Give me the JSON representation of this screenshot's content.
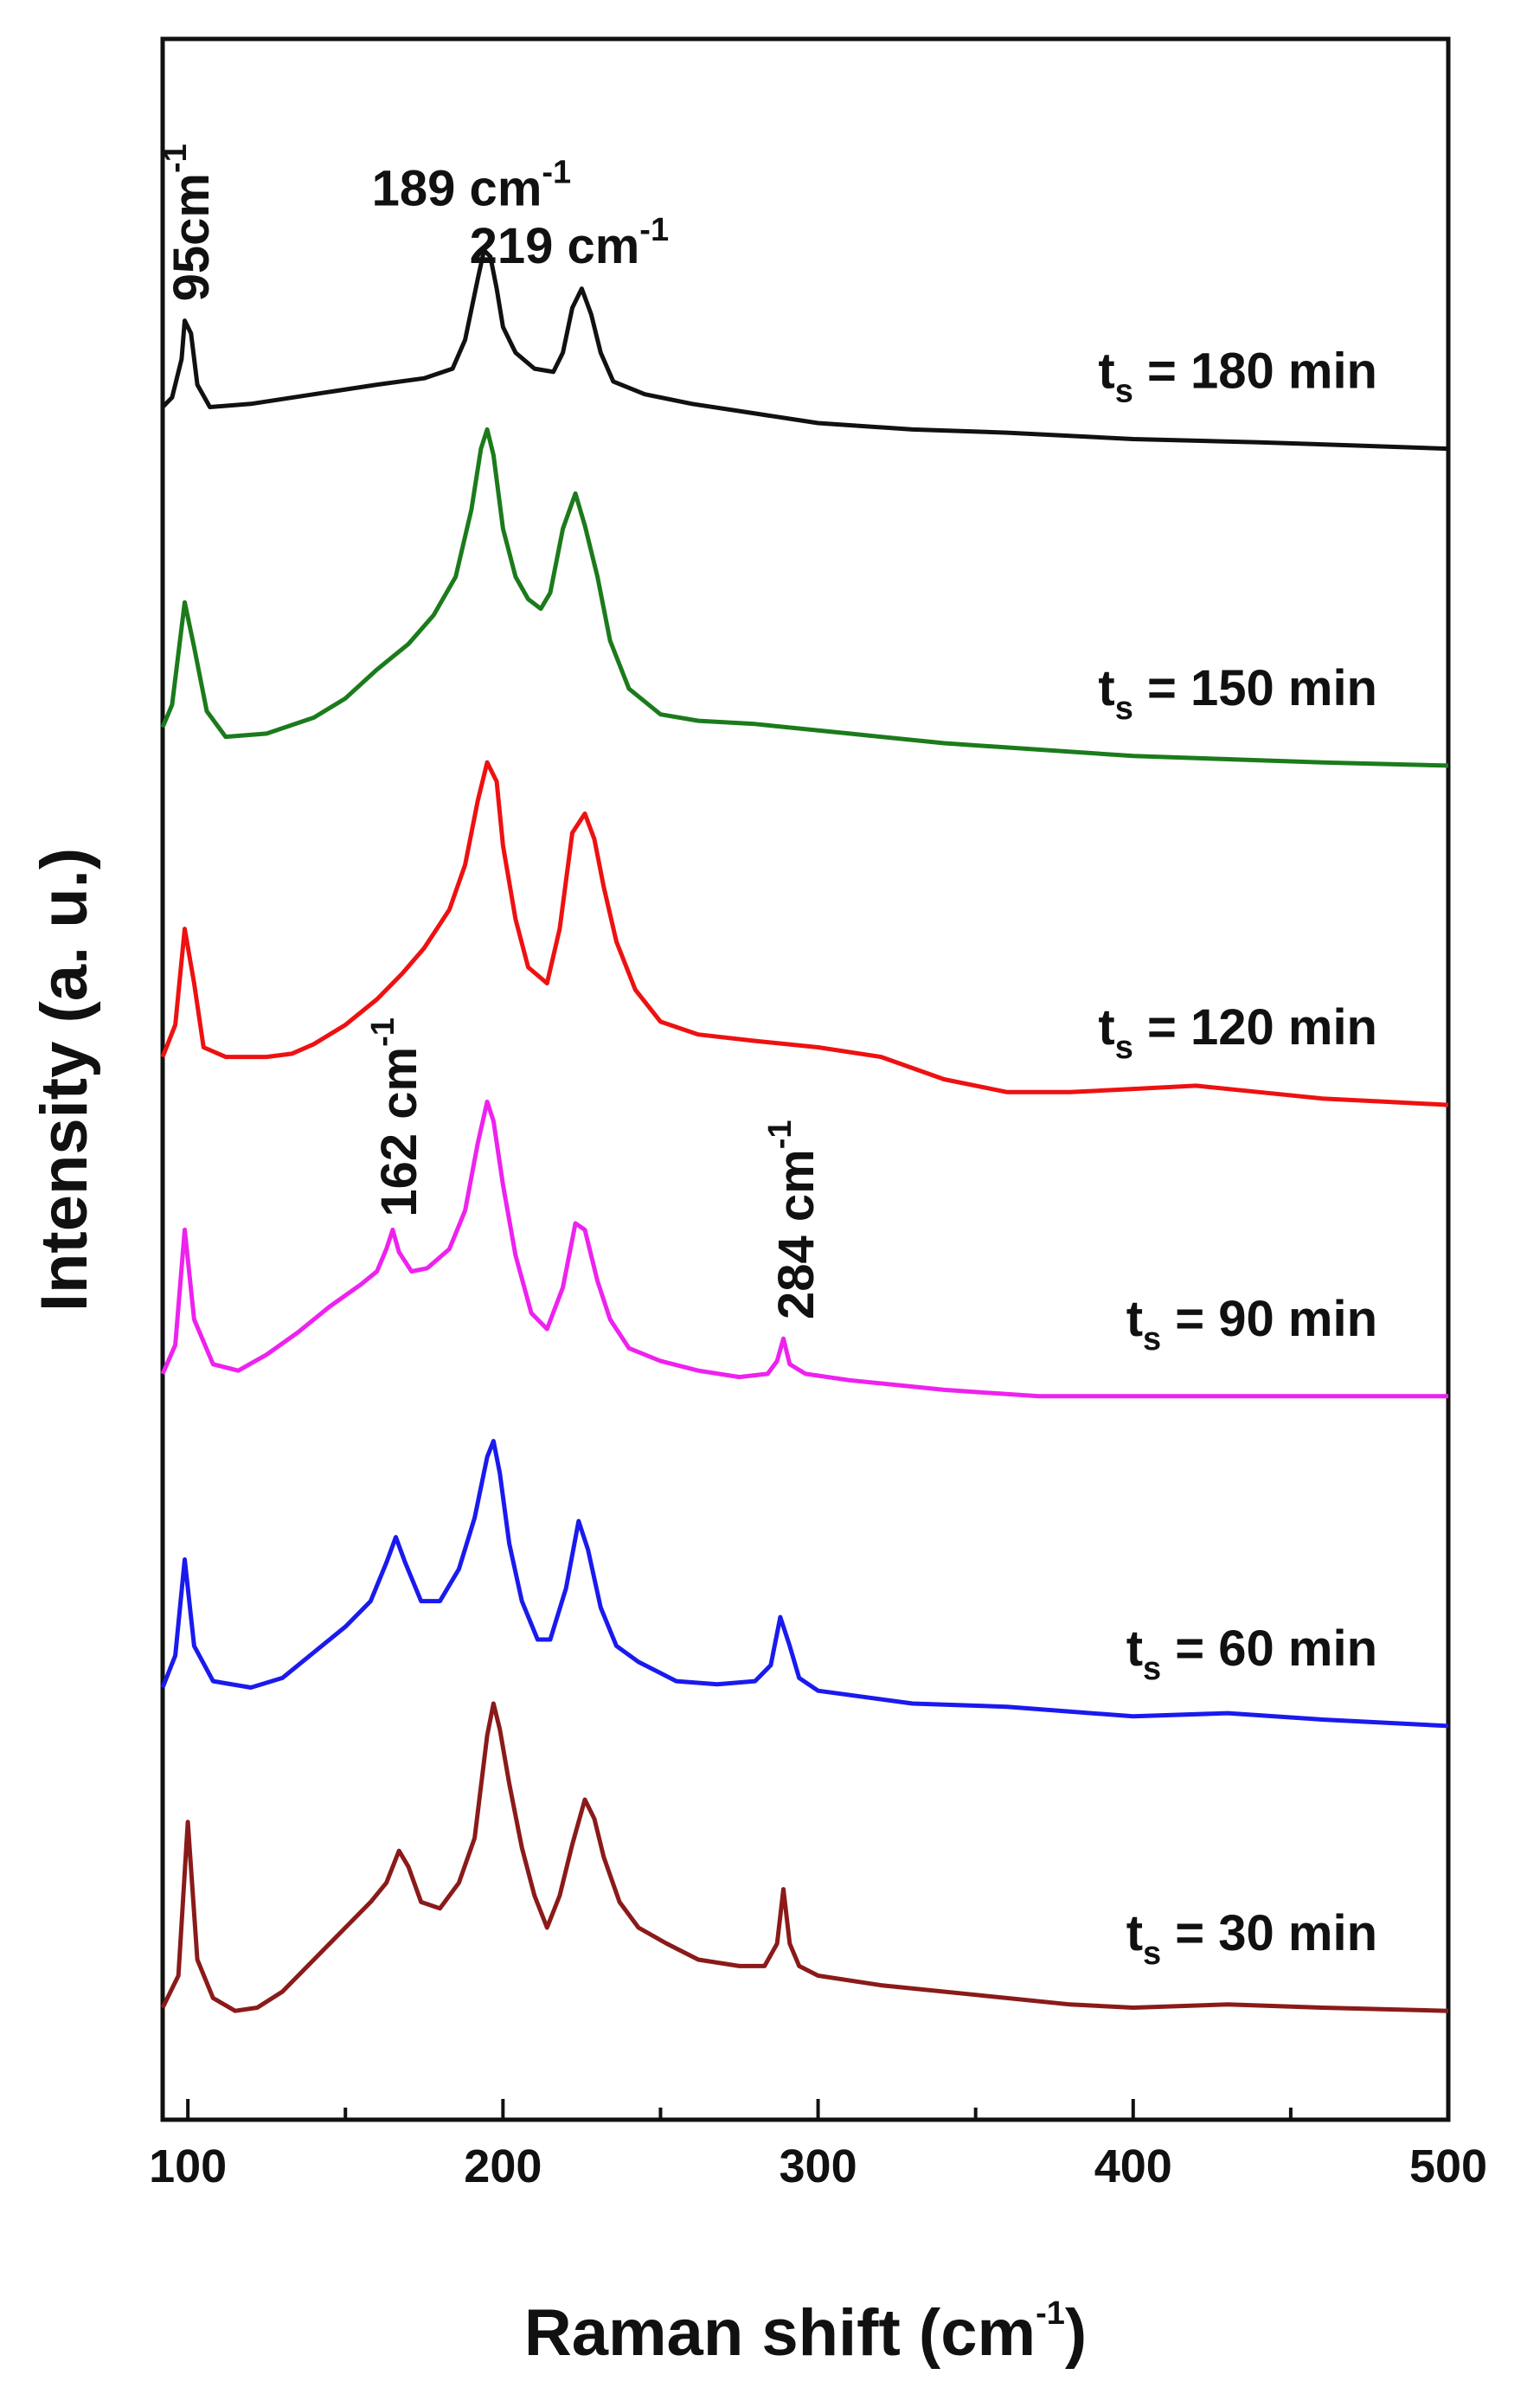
{
  "chart_data": {
    "type": "line",
    "title": "",
    "xlabel": "Raman shift (cm",
    "xlabel_sup": "-1",
    "xlabel_close": ")",
    "ylabel": "Intensity (a. u.)",
    "xlim": [
      92,
      500
    ],
    "ylim": [
      0,
      6.5
    ],
    "xticks": [
      100,
      200,
      300,
      400,
      500
    ],
    "xtick_labels": [
      "100",
      "200",
      "300",
      "400",
      "500"
    ],
    "grid": false,
    "series": [
      {
        "name": "t_s = 30 min",
        "label_main": "t",
        "label_sub": "s",
        "label_rest": " = 30 min",
        "color": "#8b1a1a",
        "points": [
          [
            92,
            0.35
          ],
          [
            97,
            0.45
          ],
          [
            100,
            0.93
          ],
          [
            103,
            0.5
          ],
          [
            108,
            0.38
          ],
          [
            115,
            0.34
          ],
          [
            122,
            0.35
          ],
          [
            130,
            0.4
          ],
          [
            140,
            0.5
          ],
          [
            150,
            0.6
          ],
          [
            158,
            0.68
          ],
          [
            163,
            0.74
          ],
          [
            167,
            0.84
          ],
          [
            170,
            0.79
          ],
          [
            174,
            0.68
          ],
          [
            180,
            0.66
          ],
          [
            186,
            0.74
          ],
          [
            191,
            0.88
          ],
          [
            195,
            1.2
          ],
          [
            197,
            1.3
          ],
          [
            199,
            1.22
          ],
          [
            202,
            1.05
          ],
          [
            206,
            0.85
          ],
          [
            210,
            0.7
          ],
          [
            214,
            0.6
          ],
          [
            218,
            0.7
          ],
          [
            222,
            0.86
          ],
          [
            226,
            1.0
          ],
          [
            229,
            0.94
          ],
          [
            232,
            0.82
          ],
          [
            237,
            0.68
          ],
          [
            243,
            0.6
          ],
          [
            252,
            0.55
          ],
          [
            262,
            0.5
          ],
          [
            275,
            0.48
          ],
          [
            283,
            0.48
          ],
          [
            287,
            0.55
          ],
          [
            289,
            0.72
          ],
          [
            291,
            0.55
          ],
          [
            294,
            0.48
          ],
          [
            300,
            0.45
          ],
          [
            320,
            0.42
          ],
          [
            350,
            0.39
          ],
          [
            380,
            0.36
          ],
          [
            400,
            0.35
          ],
          [
            430,
            0.36
          ],
          [
            460,
            0.35
          ],
          [
            500,
            0.34
          ]
        ]
      },
      {
        "name": "t_s = 60 min",
        "label_main": "t",
        "label_sub": "s",
        "label_rest": " = 60 min",
        "color": "#1a1aee",
        "points": [
          [
            92,
            1.35
          ],
          [
            96,
            1.45
          ],
          [
            99,
            1.75
          ],
          [
            102,
            1.48
          ],
          [
            108,
            1.37
          ],
          [
            120,
            1.35
          ],
          [
            130,
            1.38
          ],
          [
            140,
            1.46
          ],
          [
            150,
            1.54
          ],
          [
            158,
            1.62
          ],
          [
            163,
            1.74
          ],
          [
            166,
            1.82
          ],
          [
            169,
            1.74
          ],
          [
            174,
            1.62
          ],
          [
            180,
            1.62
          ],
          [
            186,
            1.72
          ],
          [
            191,
            1.88
          ],
          [
            195,
            2.07
          ],
          [
            197,
            2.12
          ],
          [
            199,
            2.02
          ],
          [
            202,
            1.8
          ],
          [
            206,
            1.62
          ],
          [
            211,
            1.5
          ],
          [
            215,
            1.5
          ],
          [
            220,
            1.66
          ],
          [
            224,
            1.87
          ],
          [
            227,
            1.78
          ],
          [
            231,
            1.6
          ],
          [
            236,
            1.48
          ],
          [
            243,
            1.43
          ],
          [
            255,
            1.37
          ],
          [
            268,
            1.36
          ],
          [
            280,
            1.37
          ],
          [
            285,
            1.42
          ],
          [
            288,
            1.57
          ],
          [
            291,
            1.48
          ],
          [
            294,
            1.38
          ],
          [
            300,
            1.34
          ],
          [
            330,
            1.3
          ],
          [
            360,
            1.29
          ],
          [
            400,
            1.26
          ],
          [
            430,
            1.27
          ],
          [
            460,
            1.25
          ],
          [
            500,
            1.23
          ]
        ]
      },
      {
        "name": "t_s = 90 min",
        "label_main": "t",
        "label_sub": "s",
        "label_rest": " = 90 min",
        "color": "#ee22ee",
        "points": [
          [
            92,
            2.33
          ],
          [
            96,
            2.42
          ],
          [
            99,
            2.78
          ],
          [
            102,
            2.5
          ],
          [
            108,
            2.36
          ],
          [
            116,
            2.34
          ],
          [
            125,
            2.39
          ],
          [
            135,
            2.46
          ],
          [
            145,
            2.54
          ],
          [
            155,
            2.61
          ],
          [
            160,
            2.65
          ],
          [
            163,
            2.72
          ],
          [
            165,
            2.78
          ],
          [
            167,
            2.71
          ],
          [
            171,
            2.65
          ],
          [
            176,
            2.66
          ],
          [
            183,
            2.72
          ],
          [
            188,
            2.84
          ],
          [
            192,
            3.05
          ],
          [
            195,
            3.18
          ],
          [
            197,
            3.12
          ],
          [
            200,
            2.92
          ],
          [
            204,
            2.7
          ],
          [
            209,
            2.52
          ],
          [
            214,
            2.47
          ],
          [
            219,
            2.6
          ],
          [
            223,
            2.8
          ],
          [
            226,
            2.78
          ],
          [
            230,
            2.62
          ],
          [
            234,
            2.5
          ],
          [
            240,
            2.41
          ],
          [
            250,
            2.37
          ],
          [
            262,
            2.34
          ],
          [
            275,
            2.32
          ],
          [
            284,
            2.33
          ],
          [
            287,
            2.37
          ],
          [
            289,
            2.44
          ],
          [
            291,
            2.36
          ],
          [
            296,
            2.33
          ],
          [
            310,
            2.31
          ],
          [
            340,
            2.28
          ],
          [
            370,
            2.26
          ],
          [
            400,
            2.26
          ],
          [
            430,
            2.26
          ],
          [
            460,
            2.26
          ],
          [
            500,
            2.26
          ]
        ]
      },
      {
        "name": "t_s = 120 min",
        "label_main": "t",
        "label_sub": "s",
        "label_rest": " = 120 min",
        "color": "#ee1111",
        "points": [
          [
            92,
            3.32
          ],
          [
            96,
            3.42
          ],
          [
            99,
            3.72
          ],
          [
            102,
            3.55
          ],
          [
            105,
            3.35
          ],
          [
            112,
            3.32
          ],
          [
            125,
            3.32
          ],
          [
            133,
            3.33
          ],
          [
            140,
            3.36
          ],
          [
            150,
            3.42
          ],
          [
            160,
            3.5
          ],
          [
            168,
            3.58
          ],
          [
            175,
            3.66
          ],
          [
            183,
            3.78
          ],
          [
            188,
            3.92
          ],
          [
            192,
            4.12
          ],
          [
            195,
            4.24
          ],
          [
            198,
            4.18
          ],
          [
            200,
            3.98
          ],
          [
            204,
            3.75
          ],
          [
            208,
            3.6
          ],
          [
            214,
            3.55
          ],
          [
            218,
            3.72
          ],
          [
            222,
            4.02
          ],
          [
            226,
            4.08
          ],
          [
            229,
            4.0
          ],
          [
            232,
            3.85
          ],
          [
            236,
            3.68
          ],
          [
            242,
            3.53
          ],
          [
            250,
            3.43
          ],
          [
            262,
            3.39
          ],
          [
            280,
            3.37
          ],
          [
            300,
            3.35
          ],
          [
            320,
            3.32
          ],
          [
            340,
            3.25
          ],
          [
            360,
            3.21
          ],
          [
            380,
            3.21
          ],
          [
            400,
            3.22
          ],
          [
            420,
            3.23
          ],
          [
            440,
            3.21
          ],
          [
            460,
            3.19
          ],
          [
            480,
            3.18
          ],
          [
            500,
            3.17
          ]
        ]
      },
      {
        "name": "t_s = 150 min",
        "label_main": "t",
        "label_sub": "s",
        "label_rest": " = 150 min",
        "color": "#1b7b1b",
        "points": [
          [
            92,
            4.35
          ],
          [
            95,
            4.42
          ],
          [
            99,
            4.74
          ],
          [
            102,
            4.6
          ],
          [
            106,
            4.4
          ],
          [
            112,
            4.32
          ],
          [
            125,
            4.33
          ],
          [
            140,
            4.38
          ],
          [
            150,
            4.44
          ],
          [
            160,
            4.53
          ],
          [
            170,
            4.61
          ],
          [
            178,
            4.7
          ],
          [
            185,
            4.82
          ],
          [
            190,
            5.03
          ],
          [
            193,
            5.22
          ],
          [
            195,
            5.28
          ],
          [
            197,
            5.2
          ],
          [
            200,
            4.97
          ],
          [
            204,
            4.82
          ],
          [
            208,
            4.75
          ],
          [
            212,
            4.72
          ],
          [
            215,
            4.77
          ],
          [
            219,
            4.97
          ],
          [
            223,
            5.08
          ],
          [
            226,
            4.98
          ],
          [
            230,
            4.82
          ],
          [
            234,
            4.62
          ],
          [
            240,
            4.47
          ],
          [
            250,
            4.39
          ],
          [
            262,
            4.37
          ],
          [
            280,
            4.36
          ],
          [
            310,
            4.33
          ],
          [
            340,
            4.3
          ],
          [
            370,
            4.28
          ],
          [
            400,
            4.26
          ],
          [
            430,
            4.25
          ],
          [
            460,
            4.24
          ],
          [
            500,
            4.23
          ]
        ]
      },
      {
        "name": "t_s = 180 min",
        "label_main": "t",
        "label_sub": "s",
        "label_rest": " = 180 min",
        "color": "#111111",
        "points": [
          [
            92,
            5.35
          ],
          [
            95,
            5.38
          ],
          [
            98,
            5.5
          ],
          [
            99,
            5.62
          ],
          [
            101,
            5.58
          ],
          [
            103,
            5.42
          ],
          [
            107,
            5.35
          ],
          [
            120,
            5.36
          ],
          [
            140,
            5.39
          ],
          [
            160,
            5.42
          ],
          [
            175,
            5.44
          ],
          [
            184,
            5.47
          ],
          [
            188,
            5.56
          ],
          [
            192,
            5.75
          ],
          [
            194,
            5.84
          ],
          [
            196,
            5.82
          ],
          [
            198,
            5.72
          ],
          [
            200,
            5.6
          ],
          [
            204,
            5.52
          ],
          [
            210,
            5.47
          ],
          [
            216,
            5.46
          ],
          [
            219,
            5.52
          ],
          [
            222,
            5.66
          ],
          [
            225,
            5.72
          ],
          [
            228,
            5.64
          ],
          [
            231,
            5.52
          ],
          [
            235,
            5.43
          ],
          [
            245,
            5.39
          ],
          [
            260,
            5.36
          ],
          [
            280,
            5.33
          ],
          [
            300,
            5.3
          ],
          [
            330,
            5.28
          ],
          [
            360,
            5.27
          ],
          [
            400,
            5.25
          ],
          [
            440,
            5.24
          ],
          [
            470,
            5.23
          ],
          [
            500,
            5.22
          ]
        ]
      }
    ],
    "annotations": [
      {
        "text": "95cm",
        "sup": "-1",
        "x": 101,
        "y": 5.68,
        "rotate": -90
      },
      {
        "text": "189 cm",
        "sup": "-1",
        "x": 190,
        "y": 5.98,
        "rotate": 0
      },
      {
        "text": "219 cm",
        "sup": "-1",
        "x": 221,
        "y": 5.8,
        "rotate": 0
      },
      {
        "text": "162 cm",
        "sup": "-1",
        "x": 167,
        "y": 2.82,
        "rotate": -90
      },
      {
        "text": "284 cm",
        "sup": "-1",
        "x": 293,
        "y": 2.5,
        "rotate": -90
      }
    ]
  }
}
